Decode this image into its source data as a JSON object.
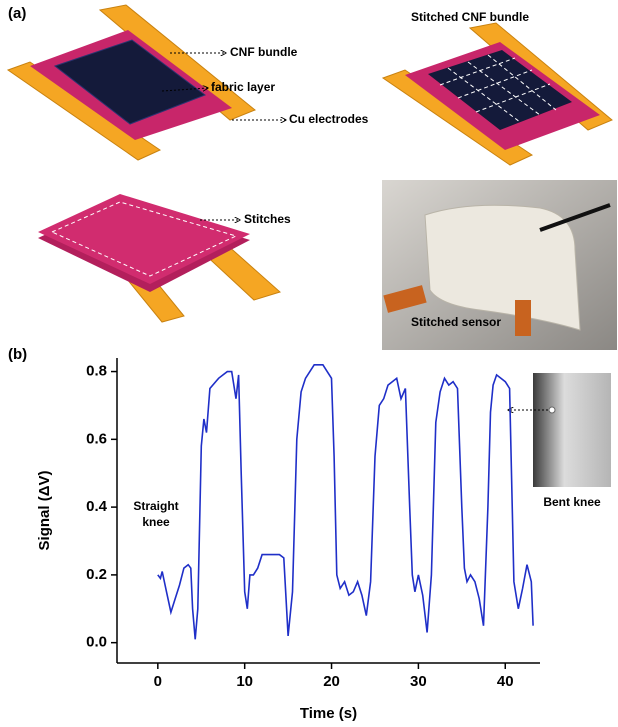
{
  "panel_a": {
    "label": "(a)",
    "callouts": [
      "CNF bundle",
      "fabric layer",
      "Cu electrodes"
    ],
    "stitched_title": "Stitched CNF bundle",
    "stitches": "Stitches",
    "photo_caption": "Stitched sensor"
  },
  "panel_b": {
    "label": "(b)"
  },
  "chart_data": {
    "type": "line",
    "xlabel": "Time (s)",
    "ylabel": "Signal (ΔV)",
    "color": "#1f2fc8",
    "annotations": [
      "Straight knee",
      "Bent knee"
    ],
    "xlim": [
      -4.7,
      44
    ],
    "ylim": [
      -0.06,
      0.84
    ],
    "xticks": [
      0,
      10,
      20,
      30,
      40
    ],
    "yticks": [
      {
        "value": 0,
        "label": "0.0"
      },
      0.2,
      0.4,
      0.6,
      0.8
    ],
    "x": [
      0,
      0.3,
      0.5,
      1,
      1.5,
      2,
      2.5,
      3,
      3.5,
      3.8,
      4,
      4.3,
      4.6,
      5,
      5.3,
      5.6,
      6,
      7,
      7.5,
      8,
      8.5,
      9,
      9.3,
      9.6,
      10,
      10.3,
      10.6,
      11,
      11.5,
      12,
      13,
      14,
      14.5,
      15,
      15.5,
      16,
      16.5,
      17,
      18,
      19,
      19.5,
      20,
      20.3,
      20.6,
      21,
      21.5,
      22,
      22.5,
      23,
      23.5,
      24,
      24.5,
      25,
      25.5,
      26,
      26.5,
      27,
      27.5,
      28,
      28.5,
      29,
      29.3,
      29.6,
      30,
      30.5,
      31,
      31.5,
      32,
      32.5,
      33,
      33.5,
      34,
      34.5,
      35,
      35.3,
      35.6,
      36,
      36.5,
      37,
      37.5,
      38,
      38.3,
      38.6,
      39,
      39.5,
      40,
      40.5,
      41,
      41.5,
      42,
      42.5,
      43,
      43.2
    ],
    "values": [
      0.2,
      0.19,
      0.21,
      0.15,
      0.09,
      0.13,
      0.17,
      0.22,
      0.23,
      0.22,
      0.1,
      0.01,
      0.1,
      0.58,
      0.66,
      0.62,
      0.75,
      0.78,
      0.79,
      0.8,
      0.8,
      0.72,
      0.79,
      0.5,
      0.15,
      0.1,
      0.2,
      0.2,
      0.22,
      0.26,
      0.26,
      0.26,
      0.25,
      0.02,
      0.15,
      0.6,
      0.74,
      0.78,
      0.82,
      0.82,
      0.8,
      0.78,
      0.55,
      0.2,
      0.16,
      0.18,
      0.14,
      0.15,
      0.18,
      0.14,
      0.08,
      0.18,
      0.55,
      0.7,
      0.72,
      0.76,
      0.77,
      0.78,
      0.72,
      0.75,
      0.4,
      0.2,
      0.15,
      0.2,
      0.14,
      0.03,
      0.2,
      0.65,
      0.74,
      0.78,
      0.76,
      0.77,
      0.75,
      0.4,
      0.22,
      0.18,
      0.2,
      0.18,
      0.13,
      0.05,
      0.4,
      0.68,
      0.76,
      0.79,
      0.78,
      0.77,
      0.75,
      0.18,
      0.1,
      0.16,
      0.23,
      0.18,
      0.05
    ]
  }
}
